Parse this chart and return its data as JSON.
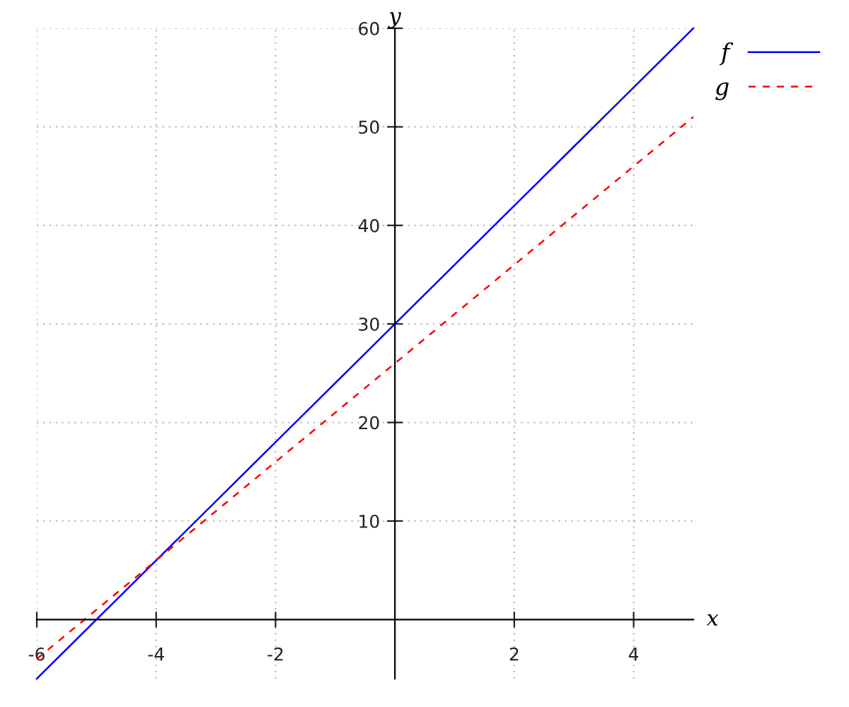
{
  "chart_data": {
    "type": "line",
    "xlabel": "x",
    "ylabel": "y",
    "xlim": [
      -6,
      5
    ],
    "ylim": [
      -6,
      60
    ],
    "xticks": [
      -6,
      -4,
      -2,
      2,
      4
    ],
    "yticks": [
      10,
      20,
      30,
      40,
      50,
      60
    ],
    "grid": true,
    "legend": "top right",
    "marker": "none",
    "series": [
      {
        "name": "f",
        "color": "#0000ff",
        "x": [
          -6,
          -4,
          -2,
          0,
          2,
          4,
          5
        ],
        "values": [
          -6,
          6,
          18,
          30,
          42,
          54,
          60
        ],
        "line_style": "solid"
      },
      {
        "name": "g",
        "color": "#ff0000",
        "x": [
          -6,
          -4,
          -2,
          0,
          2,
          4,
          5
        ],
        "values": [
          -4,
          6,
          16,
          26,
          36,
          46,
          51
        ],
        "line_style": "dashed"
      }
    ]
  }
}
